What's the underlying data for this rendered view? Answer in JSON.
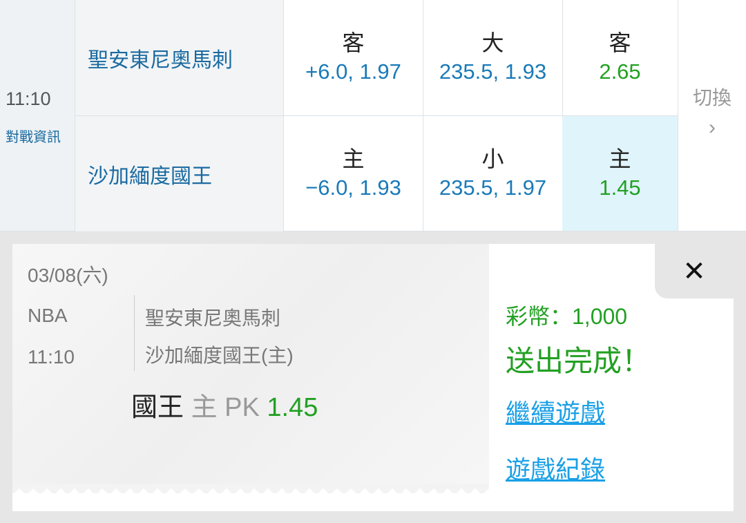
{
  "match": {
    "time": "11:10",
    "info_link": "對戰資訊",
    "switch_label": "切換",
    "switch_icon": "chevron-right-icon",
    "rows": [
      {
        "team": "聖安東尼奧馬刺",
        "spread": {
          "label": "客",
          "value": "+6.0, 1.97"
        },
        "total": {
          "label": "大",
          "value": "235.5, 1.93"
        },
        "moneyline": {
          "label": "客",
          "value": "2.65"
        }
      },
      {
        "team": "沙加緬度國王",
        "spread": {
          "label": "主",
          "value": "−6.0, 1.93"
        },
        "total": {
          "label": "小",
          "value": "235.5, 1.97"
        },
        "moneyline": {
          "label": "主",
          "value": "1.45"
        }
      }
    ]
  },
  "ticket": {
    "date": "03/08(六)",
    "league": "NBA",
    "time": "11:10",
    "away": "聖安東尼奧馬刺",
    "home": "沙加緬度國王(主)",
    "pick_team": "國王",
    "pick_side": "主",
    "pick_type": "PK",
    "pick_odds": "1.45"
  },
  "result": {
    "coins": "彩幣：1,000",
    "message": "送出完成！",
    "continue_link": "繼續遊戲",
    "history_link": "遊戲紀錄",
    "close_icon": "close-icon"
  },
  "colors": {
    "blue": "#1a7ab8",
    "green": "#22a022",
    "link": "#1aa0e6",
    "selected": "#e0f4fb"
  }
}
